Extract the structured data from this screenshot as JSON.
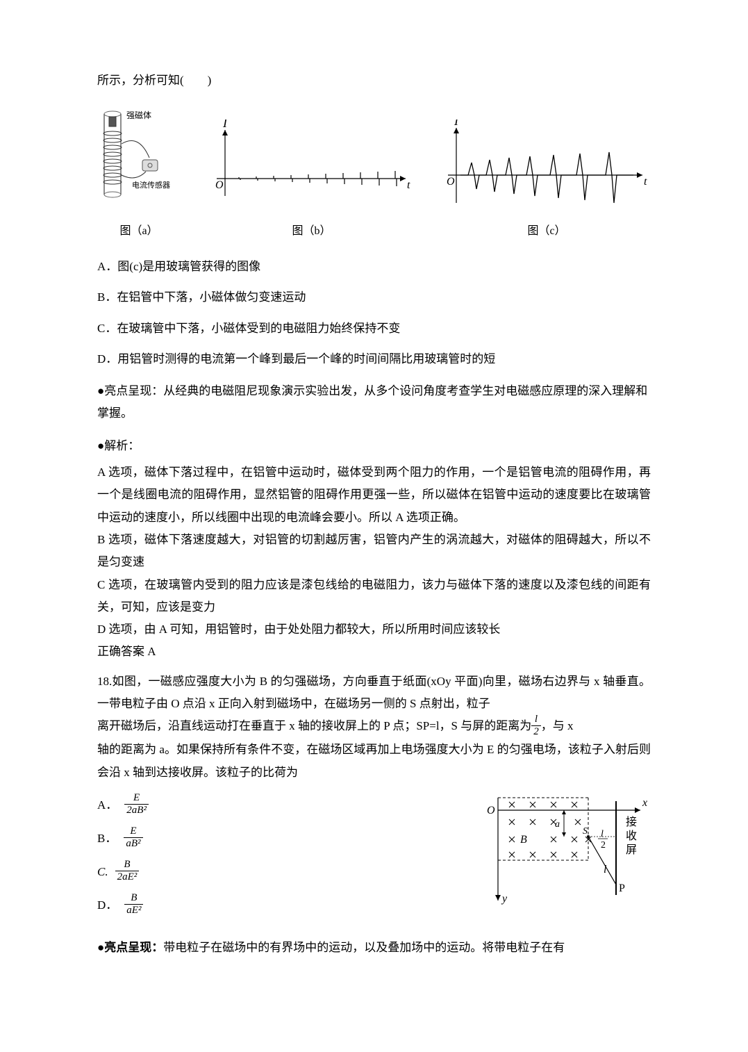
{
  "intro_line": "所示，分析可知(　　)",
  "figures": {
    "a": {
      "caption": "图（a）",
      "label_magnet": "强磁体",
      "label_sensor": "电流传感器",
      "tube_color": "#b0b0b0",
      "coil_color": "#333333",
      "magnet_color": "#555555"
    },
    "b": {
      "caption": "图（b）",
      "y_label": "I",
      "x_label": "t",
      "origin": "O",
      "axis_color": "#000000",
      "tick_color": "#000000",
      "xlim": [
        -15,
        280
      ],
      "ylim": [
        -30,
        70
      ],
      "tick_positions": [
        20,
        45,
        70,
        95,
        120,
        145,
        170,
        195,
        220,
        245
      ],
      "tick_heights": [
        2,
        3,
        4,
        5,
        6,
        7,
        8,
        9,
        10,
        11
      ]
    },
    "c": {
      "caption": "图（c）",
      "y_label": "I",
      "x_label": "t",
      "origin": "O",
      "axis_color": "#000000",
      "curve_color": "#000000",
      "xlim": [
        -15,
        280
      ],
      "ylim": [
        -40,
        70
      ],
      "peaks": [
        {
          "x": 22,
          "up": 18,
          "down": 20
        },
        {
          "x": 48,
          "up": 22,
          "down": 24
        },
        {
          "x": 76,
          "up": 25,
          "down": 27
        },
        {
          "x": 106,
          "up": 27,
          "down": 30
        },
        {
          "x": 140,
          "up": 29,
          "down": 33
        },
        {
          "x": 178,
          "up": 31,
          "down": 36
        },
        {
          "x": 220,
          "up": 33,
          "down": 40
        }
      ]
    }
  },
  "options17": {
    "A": "A．图(c)是用玻璃管获得的图像",
    "B": "B．在铝管中下落，小磁体做匀变速运动",
    "C": "C．在玻璃管中下落，小磁体受到的电磁阻力始终保持不变",
    "D": "D．用铝管时测得的电流第一个峰到最后一个峰的时间间隔比用玻璃管时的短"
  },
  "highlight17": "●亮点呈现：从经典的电磁阻尼现象演示实验出发，从多个设问角度考查学生对电磁感应原理的深入理解和掌握。",
  "analysis_heading": "●解析：",
  "analysis17": {
    "A": "A 选项，磁体下落过程中，在铝管中运动时，磁体受到两个阻力的作用，一个是铝管电流的阻碍作用，再一个是线圈电流的阻碍作用，显然铝管的阻碍作用更强一些，所以磁体在铝管中运动的速度要比在玻璃管中运动的速度小，所以线圈中出现的电流峰会要小。所以 A 选项正确。",
    "B": "B 选项，磁体下落速度越大，对铝管的切割越厉害，铝管内产生的涡流越大，对磁体的阻碍越大，所以不是匀变速",
    "C": "C 选项，在玻璃管内受到的阻力应该是漆包线给的电磁阻力，该力与磁体下落的速度以及漆包线的间距有关，可知，应该是变力",
    "D": "D 选项，由 A 可知，用铝管时，由于处处阻力都较大，所以所用时间应该较长",
    "answer": "正确答案 A"
  },
  "q18": {
    "stem1": "18.如图，一磁感应强度大小为 B 的匀强磁场，方向垂直于纸面(xOy 平面)向里，磁场右边界与 x 轴垂直。一带电粒子由 O 点沿 x 正向入射到磁场中，在磁场另一侧的 S 点射出，粒子",
    "stem2a": "离开磁场后，沿直线运动打在垂直于 x 轴的接收屏上的 P 点；SP=l，S 与屏的距离为",
    "stem2b": "，与 x",
    "frac_l2": {
      "num": "l",
      "den": "2"
    },
    "stem3": "轴的距离为 a。如果保持所有条件不变，在磁场区域再加上电场强度大小为 E 的匀强电场，该粒子入射后则会沿 x 轴到达接收屏。该粒子的比荷为",
    "options": {
      "A": {
        "label": "A．",
        "num": "E",
        "den": "2aB²"
      },
      "B": {
        "label": "B．",
        "num": "E",
        "den": "aB²"
      },
      "C": {
        "label": "C.",
        "num": "B",
        "den": "2aE²",
        "italic_label": true
      },
      "D": {
        "label": "D．",
        "num": "B",
        "den": "aE²"
      }
    },
    "diagram": {
      "O": "O",
      "x": "x",
      "y": "y",
      "B": "B",
      "a": "a",
      "S": "S",
      "l": "l",
      "half": "2",
      "screen_label": "接收屏",
      "P": "P",
      "cross_color": "#000000",
      "dash_color": "#000000",
      "text_color": "#000000",
      "bg_color": "#ffffff",
      "screen_left": 210
    }
  },
  "highlight18_prefix": "●亮点呈现：",
  "highlight18_body": "带电粒子在磁场中的有界场中的运动，以及叠加场中的运动。将带电粒子在有"
}
